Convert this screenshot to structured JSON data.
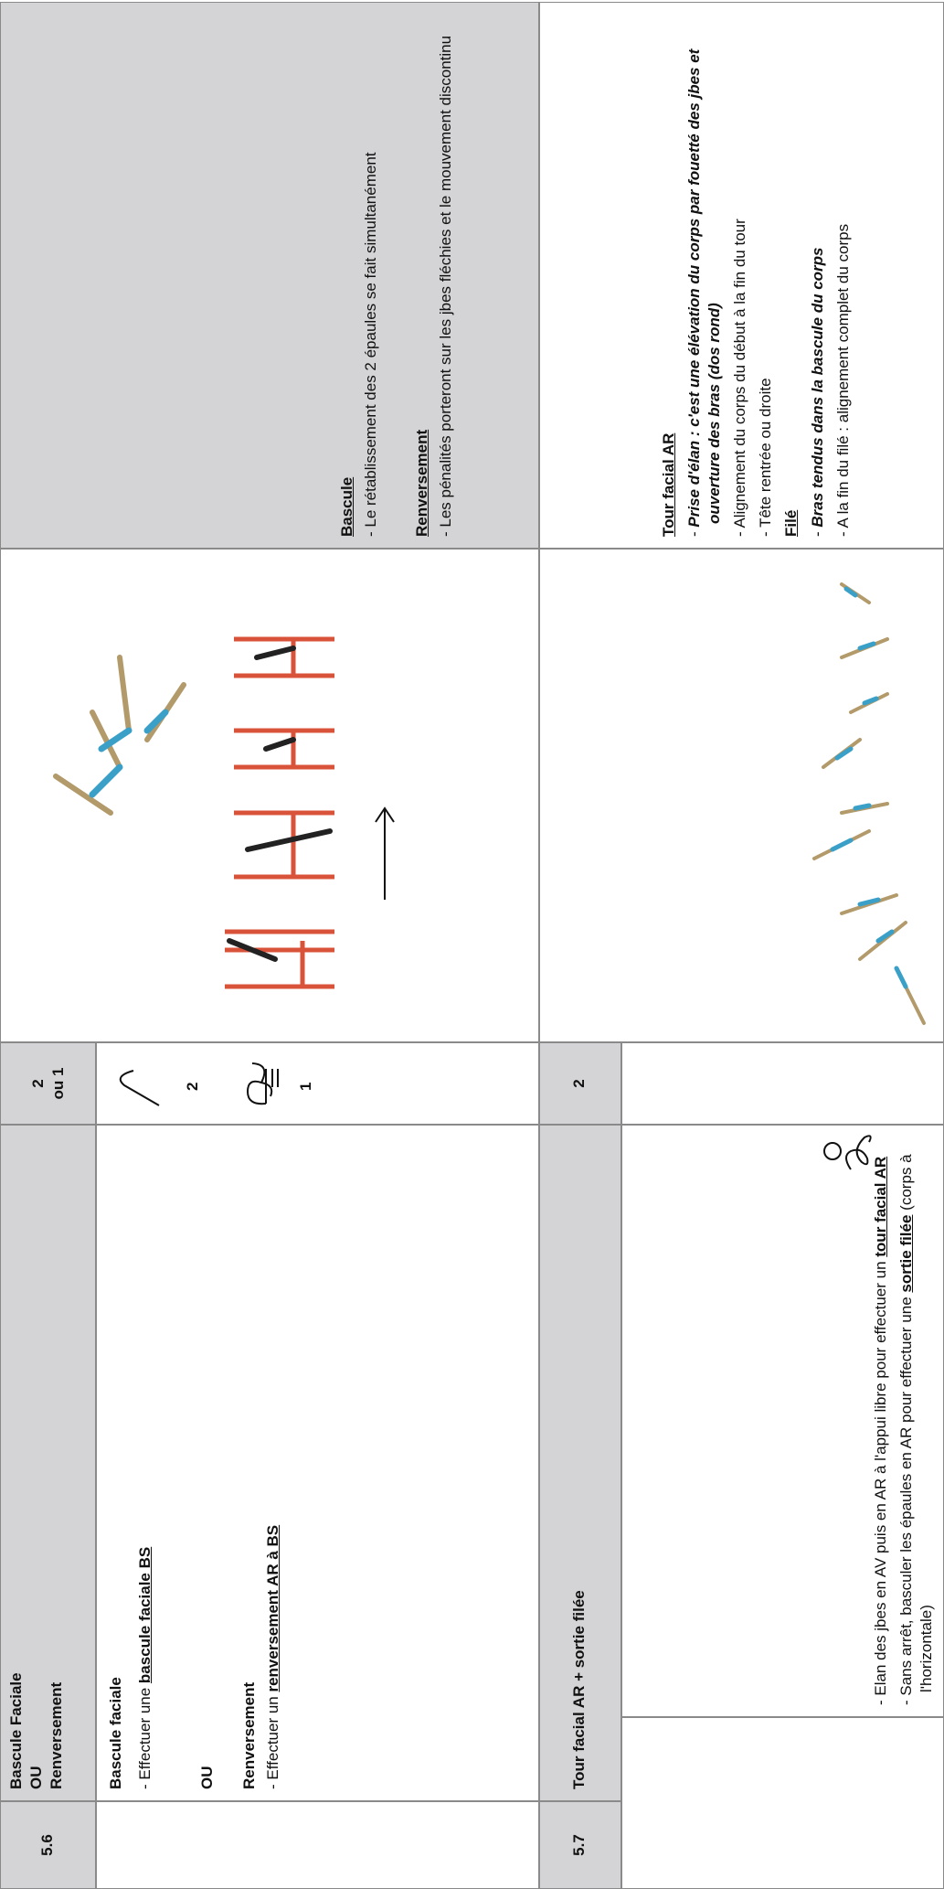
{
  "rows": [
    {
      "number": "5.6",
      "title": [
        "Bascule Faciale",
        "OU",
        "Renversement"
      ],
      "points": [
        "2",
        "ou 1"
      ],
      "description": {
        "heading1": "Bascule faciale",
        "line1": "- Effectuer une ",
        "link1": "bascule faciale BS",
        "or": "OU",
        "heading2": "Renversement",
        "line2": "- Effectuer un ",
        "link2": "renversement AR à BS"
      },
      "symbol_points": [
        "2",
        "1"
      ],
      "criteria": {
        "heading1": "Bascule",
        "line1": "- Le rétablissement des 2 épaules se fait simultanément",
        "heading2": "Renversement",
        "line2": "- Les pénalités porteront sur les jbes fléchies et le mouvement discontinu"
      }
    },
    {
      "number": "5.7",
      "title": [
        "Tour facial AR + sortie filée"
      ],
      "points": [
        "2"
      ],
      "description": {
        "line1": "- Elan des jbes en AV puis en AR à l'appui libre pour effectuer un ",
        "link1": "tour facial AR",
        "line2": "- Sans arrêt, basculer les épaules en AR pour effectuer une ",
        "link2": "sortie filée",
        "line2_end": " (corps à l'horizontale)"
      },
      "criteria": {
        "heading1": "Tour facial AR",
        "line1_dash": "- ",
        "line1": "Prise d'élan : c'est une élévation du corps par fouetté des jbes et ouverture des bras (dos rond)",
        "line2": "- Alignement du corps du début à la fin du tour",
        "line3": "- Tête rentrée ou droite",
        "heading2": "Filé",
        "line4_dash": "- ",
        "line4": "Bras tendus dans la bascule du corps",
        "line5": "- A la fin du filé : alignement complet du corps"
      }
    }
  ]
}
